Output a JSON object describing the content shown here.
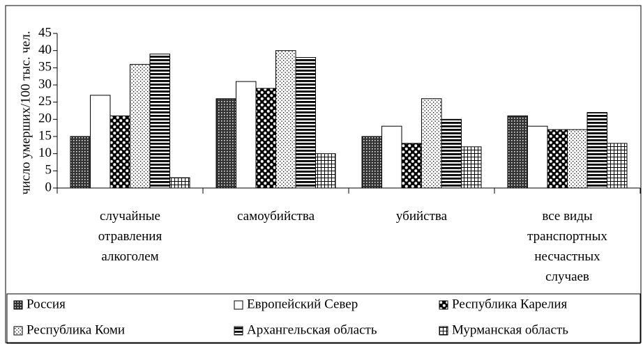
{
  "chart_data": {
    "type": "bar",
    "y_label": "число умерших/100 тыс. чел.",
    "categories": [
      "случайные отравления алкоголем",
      "самоубийства",
      "убийства",
      "все виды транспортных несчастных случаев"
    ],
    "series": [
      {
        "name": "Россия",
        "pattern": "dots",
        "values": [
          15,
          26,
          15,
          21
        ]
      },
      {
        "name": "Европейский Север",
        "pattern": "none",
        "values": [
          27,
          31,
          18,
          18
        ]
      },
      {
        "name": "Республика Карелия",
        "pattern": "checker",
        "values": [
          21,
          29,
          13,
          17
        ]
      },
      {
        "name": "Республика Коми",
        "pattern": "fine-dots",
        "values": [
          36,
          40,
          26,
          17
        ]
      },
      {
        "name": "Архангельская область",
        "pattern": "stripes",
        "values": [
          39,
          38,
          20,
          22
        ]
      },
      {
        "name": "Мурманская область",
        "pattern": "grid",
        "values": [
          3,
          10,
          12,
          13
        ]
      }
    ],
    "ylim": [
      0,
      45
    ],
    "yticks": [
      0,
      5,
      10,
      15,
      20,
      25,
      30,
      35,
      40,
      45
    ],
    "legend": "bottom"
  }
}
